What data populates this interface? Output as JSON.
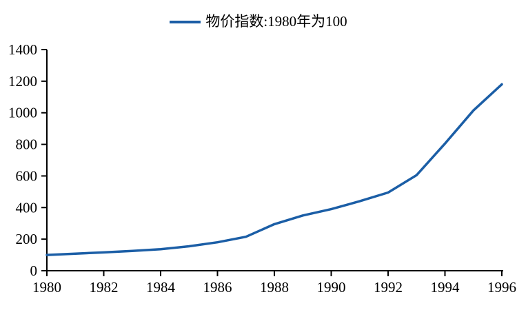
{
  "chart_data": {
    "type": "line",
    "title": "",
    "xlabel": "",
    "ylabel": "",
    "legend": "物价指数:1980年为100",
    "legend_position": "top-center",
    "grid": false,
    "x": [
      1980,
      1981,
      1982,
      1983,
      1984,
      1985,
      1986,
      1987,
      1988,
      1989,
      1990,
      1991,
      1992,
      1993,
      1994,
      1995,
      1996
    ],
    "series": [
      {
        "name": "物价指数:1980年为100",
        "values": [
          100,
          108,
          116,
          125,
          136,
          155,
          180,
          215,
          295,
          350,
          390,
          440,
          495,
          605,
          805,
          1015,
          1180
        ]
      }
    ],
    "xlim": [
      1980,
      1996
    ],
    "ylim": [
      0,
      1400
    ],
    "x_tick_labels": [
      "1980",
      "1982",
      "1984",
      "1986",
      "1988",
      "1990",
      "1992",
      "1994",
      "1996"
    ],
    "y_ticks": [
      0,
      200,
      400,
      600,
      800,
      1000,
      1200,
      1400
    ],
    "line_color": "#1B5EA6",
    "axis_color": "#000000",
    "text_color": "#000000"
  }
}
